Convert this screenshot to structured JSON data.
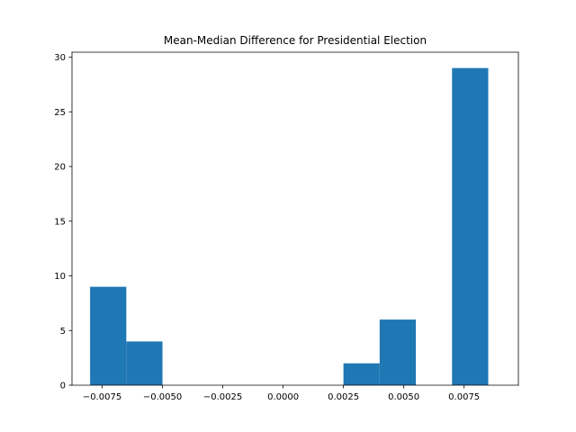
{
  "chart_data": {
    "type": "bar",
    "title": "Mean-Median Difference for Presidential Election",
    "xlabel": "",
    "ylabel": "",
    "xlim": [
      -0.00875,
      0.00975
    ],
    "ylim": [
      0,
      30.45
    ],
    "grid": false,
    "bar_color": "#1f77b4",
    "bins": [
      {
        "x0": -0.008,
        "x1": -0.0065,
        "value": 9
      },
      {
        "x0": -0.0065,
        "x1": -0.005,
        "value": 4
      },
      {
        "x0": -0.005,
        "x1": -0.0035,
        "value": 0
      },
      {
        "x0": -0.0035,
        "x1": -0.002,
        "value": 0
      },
      {
        "x0": -0.002,
        "x1": -0.0005,
        "value": 0
      },
      {
        "x0": -0.0005,
        "x1": 0.001,
        "value": 0
      },
      {
        "x0": 0.001,
        "x1": 0.0025,
        "value": 0
      },
      {
        "x0": 0.0025,
        "x1": 0.004,
        "value": 2
      },
      {
        "x0": 0.004,
        "x1": 0.0055,
        "value": 6
      },
      {
        "x0": 0.0055,
        "x1": 0.007,
        "value": 0
      },
      {
        "x0": 0.007,
        "x1": 0.0085,
        "value": 29
      }
    ],
    "x_ticks": [
      {
        "value": -0.0075,
        "label": "−0.0075"
      },
      {
        "value": -0.005,
        "label": "−0.0050"
      },
      {
        "value": -0.0025,
        "label": "−0.0025"
      },
      {
        "value": 0.0,
        "label": "0.0000"
      },
      {
        "value": 0.0025,
        "label": "0.0025"
      },
      {
        "value": 0.005,
        "label": "0.0050"
      },
      {
        "value": 0.0075,
        "label": "0.0075"
      }
    ],
    "y_ticks": [
      {
        "value": 0,
        "label": "0"
      },
      {
        "value": 5,
        "label": "5"
      },
      {
        "value": 10,
        "label": "10"
      },
      {
        "value": 15,
        "label": "15"
      },
      {
        "value": 20,
        "label": "20"
      },
      {
        "value": 25,
        "label": "25"
      },
      {
        "value": 30,
        "label": "30"
      }
    ]
  }
}
